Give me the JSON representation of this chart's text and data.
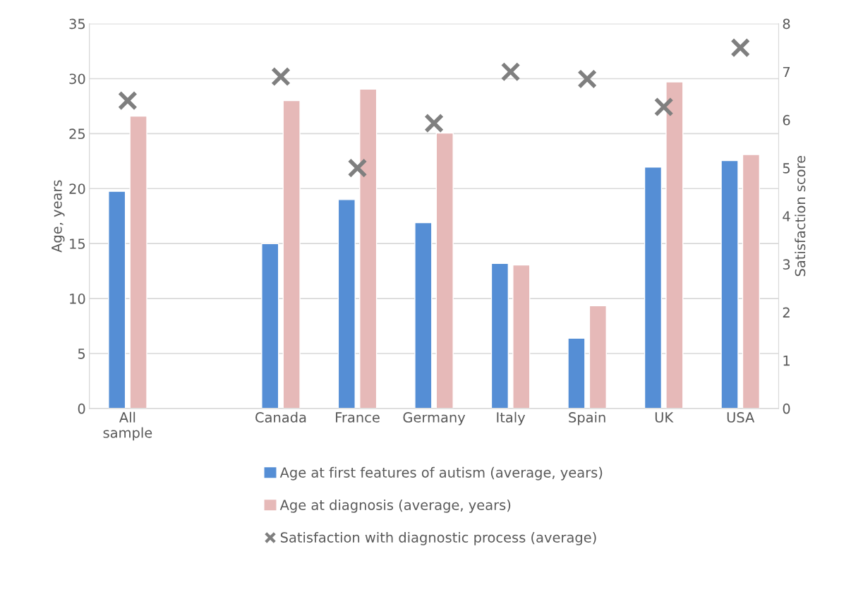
{
  "chart_data": {
    "type": "bar",
    "categories": [
      "All\nsample",
      null,
      "Canada",
      "France",
      "Germany",
      "Italy",
      "Spain",
      "UK",
      "USA"
    ],
    "ylabel": "Age, years",
    "y2label": "Satisfaction score",
    "ylim": [
      0,
      35
    ],
    "yticks": [
      0,
      5,
      10,
      15,
      20,
      25,
      30,
      35
    ],
    "y2lim": [
      0,
      8
    ],
    "y2ticks": [
      0,
      1,
      2,
      3,
      4,
      5,
      6,
      7,
      8
    ],
    "grid": "y",
    "legend": "bottom",
    "series": [
      {
        "name": "Age at first features of autism (average, years)",
        "color": "#558ed5",
        "values": [
          19.75,
          null,
          15.0,
          19.0,
          16.9,
          13.2,
          6.4,
          21.95,
          22.55
        ]
      },
      {
        "name": "Age at diagnosis (average, years)",
        "color": "#e6b9b8",
        "values": [
          26.6,
          null,
          28.0,
          29.05,
          25.05,
          13.05,
          9.35,
          29.7,
          23.1
        ]
      },
      {
        "name": "Satisfaction with diagnostic process (average)",
        "type": "scatter",
        "axis": "y2",
        "marker": "cross",
        "color": "#7f7f7f",
        "values": [
          6.4,
          null,
          6.9,
          5.0,
          5.93,
          7.0,
          6.85,
          6.27,
          7.5
        ]
      }
    ]
  }
}
